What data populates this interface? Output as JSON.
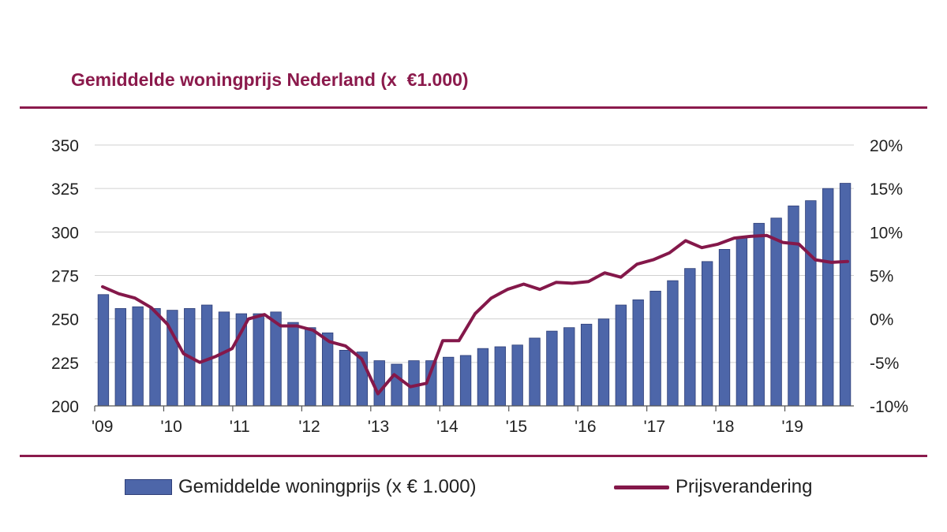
{
  "title": "Gemiddelde woningprijs Nederland (x  €1.000)",
  "legend": {
    "bars": "Gemiddelde woningprijs (x € 1.000)",
    "line": "Prijsverandering"
  },
  "colors": {
    "title": "#8b1a4c",
    "bars": "#4d66a9",
    "bar_edge": "#2f3f78",
    "line": "#84184a",
    "grid": "#d0d0d0",
    "rule": "#8b1a4c"
  },
  "chart_data": {
    "type": "bar",
    "title": "Gemiddelde woningprijs Nederland (x  €1.000)",
    "x_ticks": [
      "'09",
      "'10",
      "'11",
      "'12",
      "'13",
      "'14",
      "'15",
      "'16",
      "'17",
      "'18",
      "'19"
    ],
    "ylim": [
      200,
      350
    ],
    "y_ticks": [
      "200",
      "225",
      "250",
      "275",
      "300",
      "325",
      "350"
    ],
    "y2lim": [
      -10,
      20
    ],
    "y2_ticks": [
      "-10%",
      "-5%",
      "0%",
      "5%",
      "10%",
      "15%",
      "20%"
    ],
    "grid": true,
    "legend_position": "bottom",
    "series": [
      {
        "name": "Gemiddelde woningprijs (x € 1.000)",
        "type": "bar",
        "axis": "left",
        "values": [
          264,
          256,
          257,
          256,
          255,
          256,
          258,
          254,
          253,
          253,
          254,
          248,
          245,
          242,
          232,
          231,
          226,
          224,
          226,
          226,
          228,
          229,
          233,
          234,
          235,
          239,
          243,
          245,
          247,
          250,
          258,
          261,
          266,
          272,
          279,
          283,
          290,
          297,
          305,
          308,
          315,
          318,
          325,
          328
        ]
      },
      {
        "name": "Prijsverandering",
        "type": "line",
        "axis": "right",
        "values": [
          3.7,
          2.9,
          2.4,
          1.3,
          -0.6,
          -4.0,
          -5.0,
          -4.3,
          -3.4,
          0.0,
          0.5,
          -0.8,
          -0.8,
          -1.3,
          -2.6,
          -3.1,
          -4.6,
          -8.6,
          -6.4,
          -7.8,
          -7.4,
          -2.5,
          -2.5,
          0.6,
          2.4,
          3.4,
          4.0,
          3.4,
          4.2,
          4.1,
          4.3,
          5.3,
          4.8,
          6.3,
          6.8,
          7.6,
          9.0,
          8.2,
          8.6,
          9.3,
          9.5,
          9.6,
          8.8,
          8.6,
          6.8,
          6.5,
          6.6
        ]
      }
    ]
  }
}
